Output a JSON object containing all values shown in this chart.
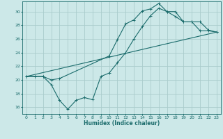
{
  "xlabel": "Humidex (Indice chaleur)",
  "xlim": [
    -0.5,
    23.5
  ],
  "ylim": [
    15.0,
    31.5
  ],
  "yticks": [
    16,
    18,
    20,
    22,
    24,
    26,
    28,
    30
  ],
  "xticks": [
    0,
    1,
    2,
    3,
    4,
    5,
    6,
    7,
    8,
    9,
    10,
    11,
    12,
    13,
    14,
    15,
    16,
    17,
    18,
    19,
    20,
    21,
    22,
    23
  ],
  "bg_color": "#cce8e8",
  "grid_color": "#aacccc",
  "line_color": "#1a6b6b",
  "line1_x": [
    0,
    1,
    2,
    3,
    4,
    10,
    11,
    12,
    13,
    14,
    15,
    16,
    17,
    18,
    19,
    20,
    21,
    22,
    23
  ],
  "line1_y": [
    20.5,
    20.5,
    20.5,
    20.0,
    20.2,
    23.5,
    25.9,
    28.2,
    28.8,
    30.1,
    30.4,
    31.2,
    30.0,
    29.3,
    28.5,
    28.5,
    28.5,
    27.3,
    27.0
  ],
  "line2_x": [
    0,
    1,
    2,
    3,
    4,
    5,
    6,
    7,
    8,
    9,
    10,
    11,
    12,
    13,
    14,
    15,
    16,
    17,
    18,
    19,
    20,
    21,
    22,
    23
  ],
  "line2_y": [
    20.5,
    20.5,
    20.5,
    19.3,
    17.0,
    15.7,
    17.0,
    17.4,
    17.1,
    20.5,
    21.0,
    22.5,
    24.0,
    26.0,
    27.8,
    29.4,
    30.5,
    30.0,
    30.0,
    28.5,
    28.5,
    27.2,
    27.2,
    27.0
  ],
  "line3_x": [
    0,
    23
  ],
  "line3_y": [
    20.5,
    27.0
  ]
}
